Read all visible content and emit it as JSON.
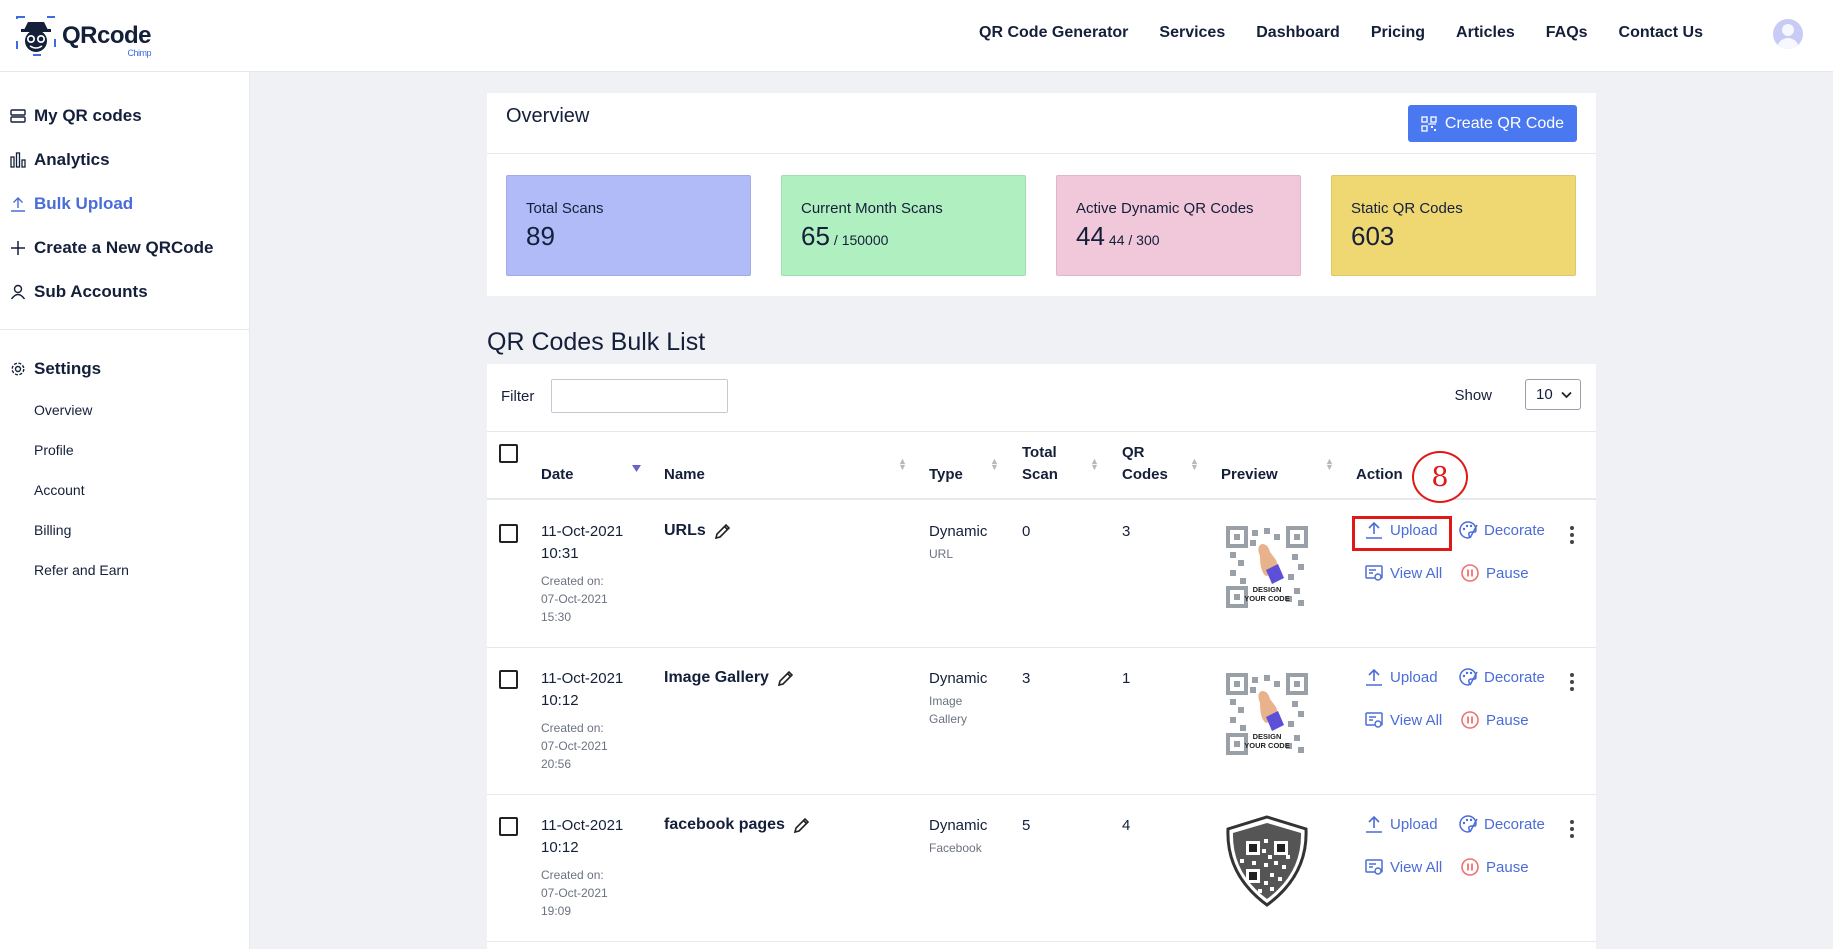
{
  "header": {
    "logo_text": "QRcode",
    "logo_sub": "Chimp",
    "nav": [
      "QR Code Generator",
      "Services",
      "Dashboard",
      "Pricing",
      "Articles",
      "FAQs",
      "Contact Us"
    ]
  },
  "sidebar": {
    "items": [
      {
        "label": "My QR codes",
        "icon": "list-icon"
      },
      {
        "label": "Analytics",
        "icon": "bar-chart-icon"
      },
      {
        "label": "Bulk Upload",
        "icon": "upload-icon",
        "active": true
      },
      {
        "label": "Create a New QRCode",
        "icon": "plus-icon"
      },
      {
        "label": "Sub Accounts",
        "icon": "user-icon"
      }
    ],
    "settings_label": "Settings",
    "settings_items": [
      "Overview",
      "Profile",
      "Account",
      "Billing",
      "Refer and Earn"
    ]
  },
  "overview": {
    "title": "Overview",
    "create_button": "Create QR Code",
    "stats": [
      {
        "label": "Total Scans",
        "value": "89",
        "extra": "",
        "color": "#b0bbf7"
      },
      {
        "label": "Current Month Scans",
        "value": "65",
        "extra": "/ 150000",
        "color": "#b0f0c0"
      },
      {
        "label": "Active Dynamic QR Codes",
        "value": "44",
        "extra": "44 / 300",
        "color": "#f1c8d9"
      },
      {
        "label": "Static QR Codes",
        "value": "603",
        "extra": "",
        "color": "#efd872"
      }
    ]
  },
  "bulk_list": {
    "title": "QR Codes Bulk List",
    "filter_label": "Filter",
    "filter_value": "",
    "show_label": "Show",
    "show_value": "10",
    "columns": {
      "date": "Date",
      "name": "Name",
      "type": "Type",
      "total_scan": "Total Scan",
      "qr_codes": "QR Codes",
      "preview": "Preview",
      "action": "Action"
    },
    "rows": [
      {
        "date": "11-Oct-2021",
        "time": "10:31",
        "created_label": "Created on:",
        "created_date": "07-Oct-2021",
        "created_time": "15:30",
        "name": "URLs",
        "type": "Dynamic",
        "subtype": "URL",
        "total_scan": "0",
        "qr_codes": "3",
        "preview": "design-your-code"
      },
      {
        "date": "11-Oct-2021",
        "time": "10:12",
        "created_label": "Created on:",
        "created_date": "07-Oct-2021",
        "created_time": "20:56",
        "name": "Image Gallery",
        "type": "Dynamic",
        "subtype": "Image Gallery",
        "total_scan": "3",
        "qr_codes": "1",
        "preview": "design-your-code"
      },
      {
        "date": "11-Oct-2021",
        "time": "10:12",
        "created_label": "Created on:",
        "created_date": "07-Oct-2021",
        "created_time": "19:09",
        "name": "facebook pages",
        "type": "Dynamic",
        "subtype": "Facebook",
        "total_scan": "5",
        "qr_codes": "4",
        "preview": "shield-qr"
      }
    ],
    "actions": {
      "upload": "Upload",
      "decorate": "Decorate",
      "view_all": "View All",
      "pause": "Pause"
    },
    "preview_caption": [
      "DESIGN",
      "YOUR CODE"
    ]
  },
  "annotation": {
    "step": "8"
  }
}
